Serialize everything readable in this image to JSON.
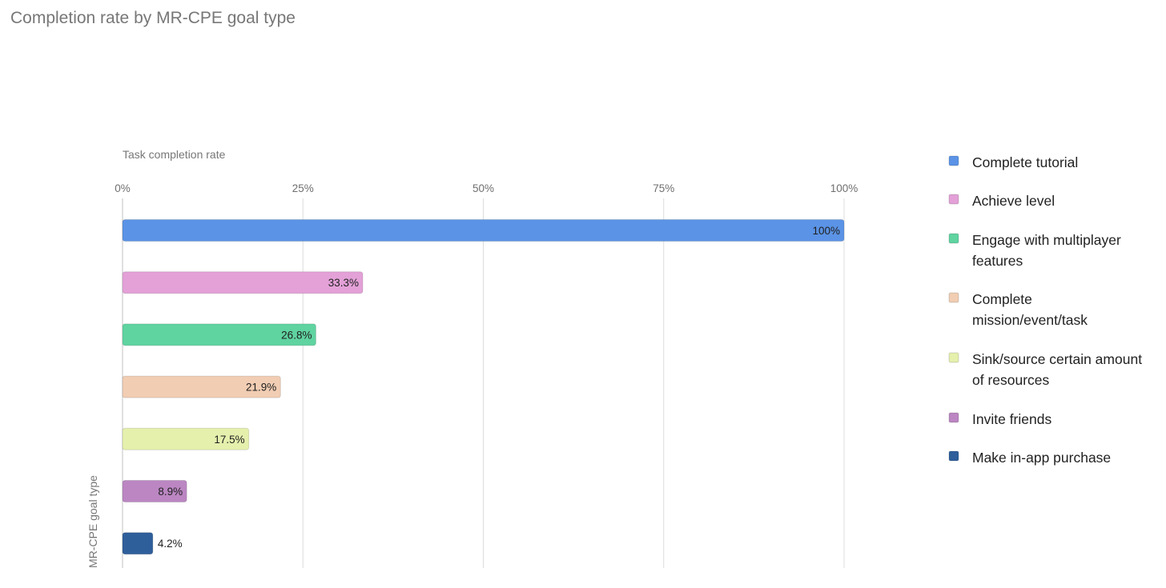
{
  "chart_data": {
    "type": "bar",
    "orientation": "horizontal",
    "title": "Completion rate by MR-CPE goal type",
    "xlabel": "Task completion rate",
    "ylabel": "MR-CPE goal type",
    "xlim": [
      0,
      100
    ],
    "xticks": [
      "0%",
      "25%",
      "50%",
      "75%",
      "100%"
    ],
    "grid": true,
    "legend_position": "right",
    "categories": [
      "Complete tutorial",
      "Achieve level",
      "Engage with multiplayer features",
      "Complete mission/event/task",
      "Sink/source certain amount of resources",
      "Invite friends",
      "Make in-app purchase"
    ],
    "values": [
      100,
      33.3,
      26.8,
      21.9,
      17.5,
      8.9,
      4.2
    ],
    "value_labels": [
      "100%",
      "33.3%",
      "26.8%",
      "21.9%",
      "17.5%",
      "8.9%",
      "4.2%"
    ],
    "colors": [
      "#5b93e6",
      "#e3a1d7",
      "#5fd3a0",
      "#f1cdb3",
      "#e5f0ad",
      "#bb86c2",
      "#2f5f9b"
    ],
    "legend": [
      [
        "Complete tutorial"
      ],
      [
        "Achieve level"
      ],
      [
        "Engage with multiplayer",
        "features"
      ],
      [
        "Complete",
        "mission/event/task"
      ],
      [
        "Sink/source certain amount",
        "of resources"
      ],
      [
        "Invite friends"
      ],
      [
        "Make in-app purchase"
      ]
    ]
  }
}
